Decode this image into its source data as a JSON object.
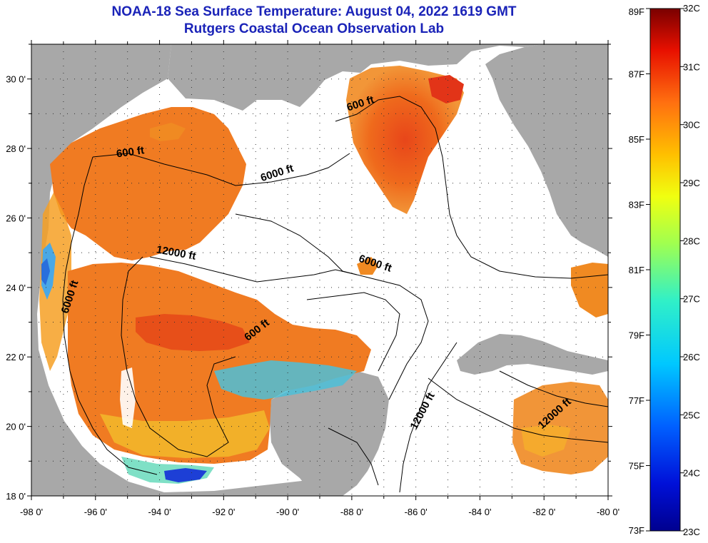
{
  "title": "NOAA-18 Sea Surface Temperature:  August 04, 2022 1619 GMT",
  "subtitle": "Rutgers Coastal Ocean Observation Lab",
  "map": {
    "lon_range": [
      -98,
      -80
    ],
    "lat_range": [
      18,
      31
    ],
    "lon_ticks": [
      "-98 0'",
      "-96 0'",
      "-94 0'",
      "-92 0'",
      "-90 0'",
      "-88 0'",
      "-86 0'",
      "-84 0'",
      "-82 0'",
      "-80 0'"
    ],
    "lat_ticks": [
      "18 0'",
      "20 0'",
      "22 0'",
      "24 0'",
      "26 0'",
      "28 0'",
      "30 0'"
    ],
    "grid": "dotted",
    "colors": {
      "land": "#a8a8a8",
      "no_data": "#ffffff",
      "contour": "#000000"
    },
    "contour_labels": [
      {
        "text": "600 ft",
        "lon": -94.9,
        "lat": 27.8
      },
      {
        "text": "6000 ft",
        "lon": -90.3,
        "lat": 27.2
      },
      {
        "text": "600 ft",
        "lon": -87.7,
        "lat": 29.2
      },
      {
        "text": "12000 ft",
        "lon": -93.5,
        "lat": 24.9
      },
      {
        "text": "6000 ft",
        "lon": -96.7,
        "lat": 23.7
      },
      {
        "text": "6000 ft",
        "lon": -87.3,
        "lat": 24.6
      },
      {
        "text": "600 ft",
        "lon": -90.9,
        "lat": 22.7
      },
      {
        "text": "12000 ft",
        "lon": -85.7,
        "lat": 20.4
      },
      {
        "text": "12000 ft",
        "lon": -81.6,
        "lat": 20.3
      }
    ]
  },
  "colorbar": {
    "f_labels": [
      "89F",
      "87F",
      "85F",
      "83F",
      "81F",
      "79F",
      "77F",
      "75F",
      "73F"
    ],
    "c_labels": [
      "32C",
      "31C",
      "30C",
      "29C",
      "28C",
      "27C",
      "26C",
      "25C",
      "24C",
      "23C"
    ],
    "range_c": [
      23,
      32
    ]
  }
}
